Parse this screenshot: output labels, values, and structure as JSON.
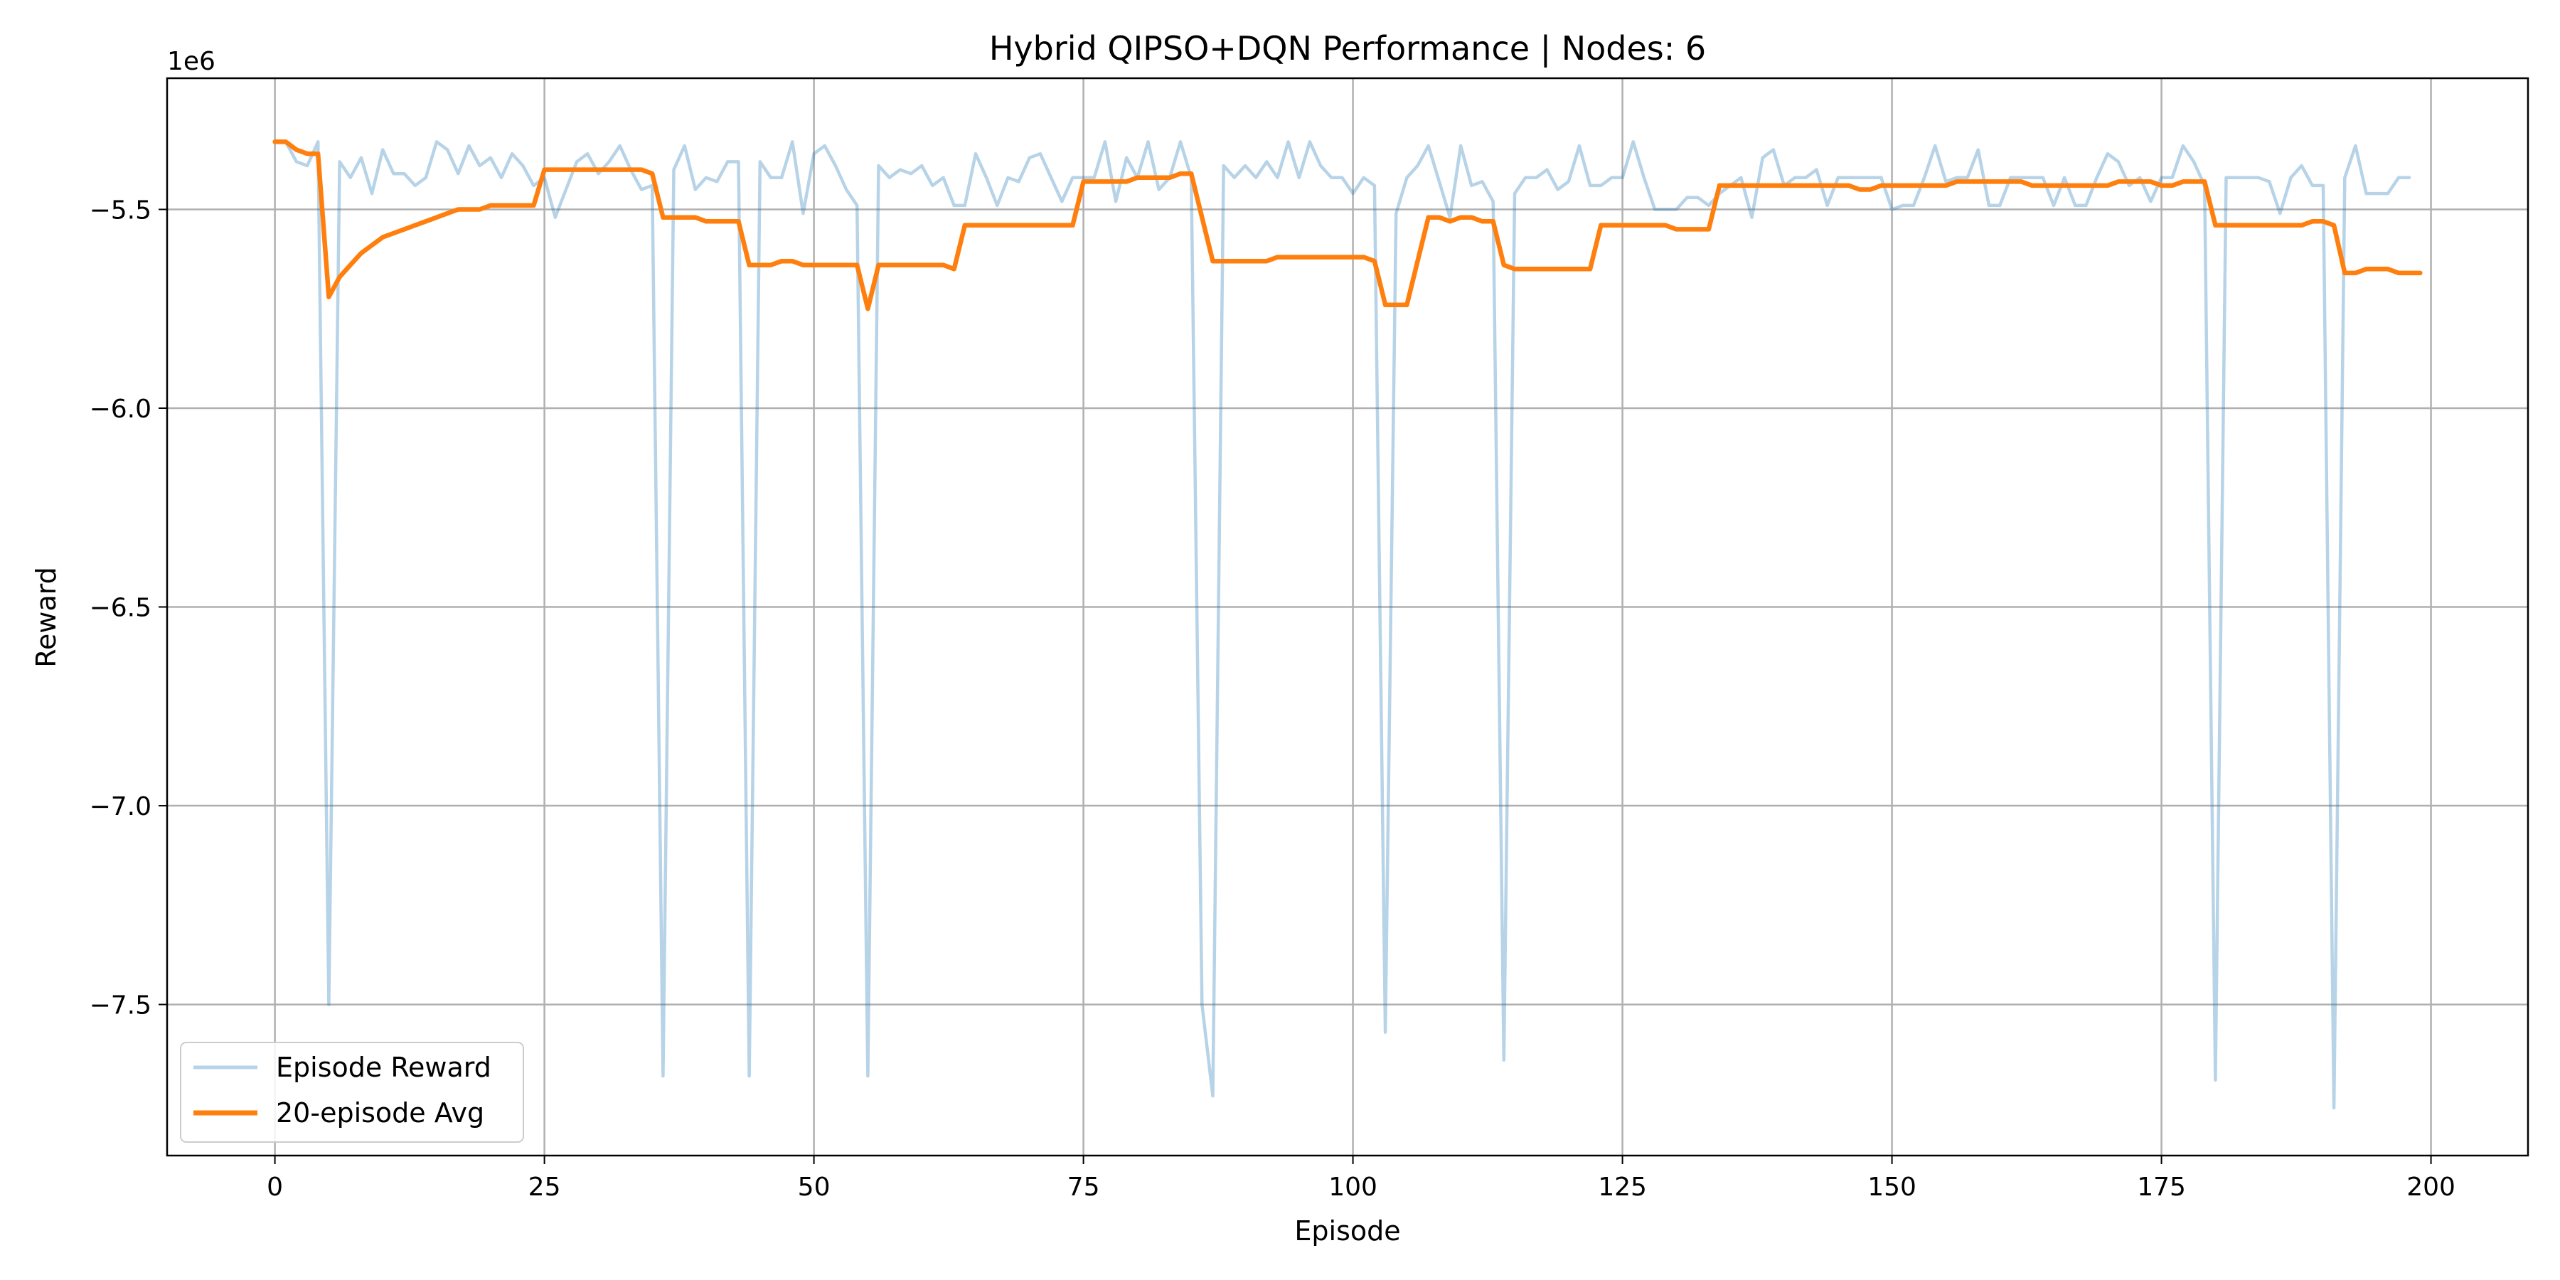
{
  "chart_data": {
    "type": "line",
    "title": "Hybrid QIPSO+DQN Performance | Nodes: 6",
    "xlabel": "Episode",
    "ylabel": "Reward",
    "y_offset_label": "1e6",
    "xlim": [
      -10,
      209
    ],
    "ylim": [
      -7.88,
      -5.17
    ],
    "x_ticks": [
      0,
      25,
      50,
      75,
      100,
      125,
      150,
      175,
      200
    ],
    "y_ticks": [
      -7.5,
      -7.0,
      -6.5,
      -6.0,
      -5.5
    ],
    "x_tick_labels": [
      "0",
      "25",
      "50",
      "75",
      "100",
      "125",
      "150",
      "175",
      "200"
    ],
    "y_tick_labels": [
      "−7.5",
      "−7.0",
      "−6.5",
      "−6.0",
      "−5.5"
    ],
    "grid": true,
    "legend_position": "lower-left",
    "series": [
      {
        "name": "Episode Reward",
        "color": "#1f77b4",
        "values": [
          -5.33,
          -5.33,
          -5.38,
          -5.39,
          -5.33,
          -7.5,
          -5.38,
          -5.42,
          -5.37,
          -5.46,
          -5.35,
          -5.41,
          -5.41,
          -5.44,
          -5.42,
          -5.33,
          -5.35,
          -5.41,
          -5.34,
          -5.39,
          -5.37,
          -5.42,
          -5.36,
          -5.39,
          -5.44,
          -5.42,
          -5.52,
          -5.45,
          -5.38,
          -5.36,
          -5.41,
          -5.38,
          -5.34,
          -5.4,
          -5.45,
          -5.44,
          -7.68,
          -5.4,
          -5.34,
          -5.45,
          -5.42,
          -5.43,
          -5.38,
          -5.38,
          -7.68,
          -5.38,
          -5.42,
          -5.42,
          -5.33,
          -5.51,
          -5.36,
          -5.34,
          -5.39,
          -5.45,
          -5.49,
          -7.68,
          -5.39,
          -5.42,
          -5.4,
          -5.41,
          -5.39,
          -5.44,
          -5.42,
          -5.49,
          -5.49,
          -5.36,
          -5.42,
          -5.49,
          -5.42,
          -5.43,
          -5.37,
          -5.36,
          -5.42,
          -5.48,
          -5.42,
          -5.42,
          -5.42,
          -5.33,
          -5.48,
          -5.37,
          -5.42,
          -5.33,
          -5.45,
          -5.42,
          -5.33,
          -5.42,
          -7.5,
          -7.73,
          -5.39,
          -5.42,
          -5.39,
          -5.42,
          -5.38,
          -5.42,
          -5.33,
          -5.42,
          -5.33,
          -5.39,
          -5.42,
          -5.42,
          -5.46,
          -5.42,
          -5.44,
          -7.57,
          -5.51,
          -5.42,
          -5.39,
          -5.34,
          -5.43,
          -5.52,
          -5.34,
          -5.44,
          -5.43,
          -5.48,
          -7.64,
          -5.46,
          -5.42,
          -5.42,
          -5.4,
          -5.45,
          -5.43,
          -5.34,
          -5.44,
          -5.44,
          -5.42,
          -5.42,
          -5.33,
          -5.42,
          -5.5,
          -5.5,
          -5.5,
          -5.47,
          -5.47,
          -5.49,
          -5.46,
          -5.44,
          -5.42,
          -5.52,
          -5.37,
          -5.35,
          -5.44,
          -5.42,
          -5.42,
          -5.4,
          -5.49,
          -5.42,
          -5.42,
          -5.42,
          -5.42,
          -5.42,
          -5.5,
          -5.49,
          -5.49,
          -5.42,
          -5.34,
          -5.43,
          -5.42,
          -5.42,
          -5.35,
          -5.49,
          -5.49,
          -5.42,
          -5.42,
          -5.42,
          -5.42,
          -5.49,
          -5.42,
          -5.49,
          -5.49,
          -5.42,
          -5.36,
          -5.38,
          -5.44,
          -5.42,
          -5.48,
          -5.42,
          -5.42,
          -5.34,
          -5.38,
          -5.44,
          -7.69,
          -5.42,
          -5.42,
          -5.42,
          -5.42,
          -5.43,
          -5.51,
          -5.42,
          -5.39,
          -5.44,
          -5.44,
          -7.76,
          -5.42,
          -5.34,
          -5.46,
          -5.46,
          -5.46,
          -5.42,
          -5.42
        ]
      },
      {
        "name": "20-episode Avg",
        "color": "#ff7f0e",
        "values": [
          -5.33,
          -5.33,
          -5.35,
          -5.36,
          -5.36,
          -5.72,
          -5.67,
          -5.64,
          -5.61,
          -5.59,
          -5.57,
          -5.56,
          -5.55,
          -5.54,
          -5.53,
          -5.52,
          -5.51,
          -5.5,
          -5.5,
          -5.5,
          -5.49,
          -5.49,
          -5.49,
          -5.49,
          -5.49,
          -5.4,
          -5.4,
          -5.4,
          -5.4,
          -5.4,
          -5.4,
          -5.4,
          -5.4,
          -5.4,
          -5.4,
          -5.41,
          -5.52,
          -5.52,
          -5.52,
          -5.52,
          -5.53,
          -5.53,
          -5.53,
          -5.53,
          -5.64,
          -5.64,
          -5.64,
          -5.63,
          -5.63,
          -5.64,
          -5.64,
          -5.64,
          -5.64,
          -5.64,
          -5.64,
          -5.75,
          -5.64,
          -5.64,
          -5.64,
          -5.64,
          -5.64,
          -5.64,
          -5.64,
          -5.65,
          -5.54,
          -5.54,
          -5.54,
          -5.54,
          -5.54,
          -5.54,
          -5.54,
          -5.54,
          -5.54,
          -5.54,
          -5.54,
          -5.43,
          -5.43,
          -5.43,
          -5.43,
          -5.43,
          -5.42,
          -5.42,
          -5.42,
          -5.42,
          -5.41,
          -5.41,
          -5.52,
          -5.63,
          -5.63,
          -5.63,
          -5.63,
          -5.63,
          -5.63,
          -5.62,
          -5.62,
          -5.62,
          -5.62,
          -5.62,
          -5.62,
          -5.62,
          -5.62,
          -5.62,
          -5.63,
          -5.74,
          -5.74,
          -5.74,
          -5.63,
          -5.52,
          -5.52,
          -5.53,
          -5.52,
          -5.52,
          -5.53,
          -5.53,
          -5.64,
          -5.65,
          -5.65,
          -5.65,
          -5.65,
          -5.65,
          -5.65,
          -5.65,
          -5.65,
          -5.54,
          -5.54,
          -5.54,
          -5.54,
          -5.54,
          -5.54,
          -5.54,
          -5.55,
          -5.55,
          -5.55,
          -5.55,
          -5.44,
          -5.44,
          -5.44,
          -5.44,
          -5.44,
          -5.44,
          -5.44,
          -5.44,
          -5.44,
          -5.44,
          -5.44,
          -5.44,
          -5.44,
          -5.45,
          -5.45,
          -5.44,
          -5.44,
          -5.44,
          -5.44,
          -5.44,
          -5.44,
          -5.44,
          -5.43,
          -5.43,
          -5.43,
          -5.43,
          -5.43,
          -5.43,
          -5.43,
          -5.44,
          -5.44,
          -5.44,
          -5.44,
          -5.44,
          -5.44,
          -5.44,
          -5.44,
          -5.43,
          -5.43,
          -5.43,
          -5.43,
          -5.44,
          -5.44,
          -5.43,
          -5.43,
          -5.43,
          -5.54,
          -5.54,
          -5.54,
          -5.54,
          -5.54,
          -5.54,
          -5.54,
          -5.54,
          -5.54,
          -5.53,
          -5.53,
          -5.54,
          -5.66,
          -5.66,
          -5.65,
          -5.65,
          -5.65,
          -5.66,
          -5.66,
          -5.66
        ]
      }
    ]
  }
}
